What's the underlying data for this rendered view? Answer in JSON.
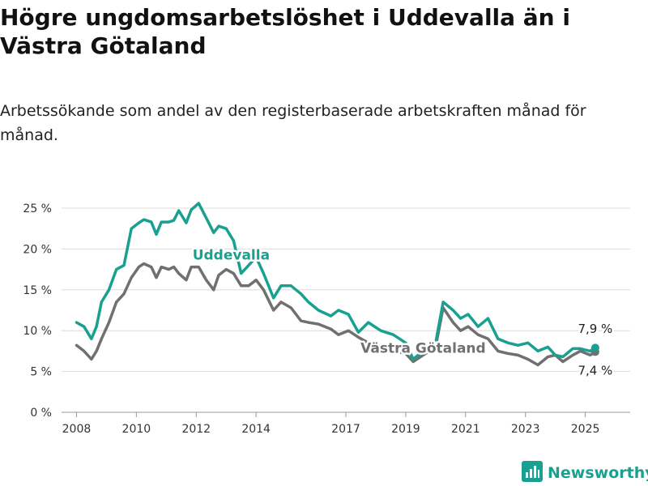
{
  "title": "Högre ungdomsarbetslöshet i Uddevalla än i Västra Götaland",
  "subtitle": "Arbetssökande som andel av den registerbaserade arbetskraften månad för månad.",
  "brand": {
    "name": "Newsworthy",
    "icon": "newsworthy-logo-icon",
    "color": "#1aa090"
  },
  "chart_data": {
    "type": "line",
    "xlim": [
      "2007-07",
      "2026-07"
    ],
    "ylim": [
      0,
      25
    ],
    "y_ticks": [
      "0 %",
      "5 %",
      "10 %",
      "15 %",
      "20 %",
      "25 %"
    ],
    "x_ticks": [
      "2008",
      "2010",
      "2012",
      "2014",
      "2017",
      "2019",
      "2021",
      "2023",
      "2025"
    ],
    "grid": true,
    "series": [
      {
        "name": "Uddevalla",
        "color": "#1aa090",
        "end_label": "7,9 %",
        "points": [
          [
            "2008-01",
            11.0
          ],
          [
            "2008-04",
            10.5
          ],
          [
            "2008-07",
            9.0
          ],
          [
            "2008-09",
            10.5
          ],
          [
            "2008-11",
            13.5
          ],
          [
            "2009-02",
            15.0
          ],
          [
            "2009-05",
            17.5
          ],
          [
            "2009-08",
            18.0
          ],
          [
            "2009-11",
            22.5
          ],
          [
            "2010-02",
            23.2
          ],
          [
            "2010-04",
            23.6
          ],
          [
            "2010-07",
            23.3
          ],
          [
            "2010-09",
            21.8
          ],
          [
            "2010-11",
            23.3
          ],
          [
            "2011-02",
            23.3
          ],
          [
            "2011-04",
            23.5
          ],
          [
            "2011-06",
            24.7
          ],
          [
            "2011-09",
            23.2
          ],
          [
            "2011-11",
            24.8
          ],
          [
            "2012-02",
            25.6
          ],
          [
            "2012-05",
            23.8
          ],
          [
            "2012-08",
            22.0
          ],
          [
            "2012-10",
            22.8
          ],
          [
            "2013-01",
            22.5
          ],
          [
            "2013-04",
            21.0
          ],
          [
            "2013-07",
            17.0
          ],
          [
            "2013-10",
            18.0
          ],
          [
            "2014-01",
            19.0
          ],
          [
            "2014-04",
            17.0
          ],
          [
            "2014-08",
            14.0
          ],
          [
            "2014-11",
            15.5
          ],
          [
            "2015-03",
            15.5
          ],
          [
            "2015-07",
            14.5
          ],
          [
            "2015-10",
            13.5
          ],
          [
            "2016-02",
            12.5
          ],
          [
            "2016-07",
            11.8
          ],
          [
            "2016-10",
            12.5
          ],
          [
            "2017-02",
            12.0
          ],
          [
            "2017-06",
            9.8
          ],
          [
            "2017-10",
            11.0
          ],
          [
            "2018-03",
            10.0
          ],
          [
            "2018-08",
            9.5
          ],
          [
            "2019-01",
            8.5
          ],
          [
            "2019-04",
            6.5
          ],
          [
            "2019-08",
            7.5
          ],
          [
            "2020-01",
            8.5
          ],
          [
            "2020-04",
            13.5
          ],
          [
            "2020-08",
            12.5
          ],
          [
            "2020-11",
            11.5
          ],
          [
            "2021-02",
            12.0
          ],
          [
            "2021-06",
            10.5
          ],
          [
            "2021-10",
            11.5
          ],
          [
            "2022-02",
            9.0
          ],
          [
            "2022-06",
            8.5
          ],
          [
            "2022-10",
            8.2
          ],
          [
            "2023-02",
            8.5
          ],
          [
            "2023-06",
            7.5
          ],
          [
            "2023-10",
            8.0
          ],
          [
            "2024-01",
            7.0
          ],
          [
            "2024-04",
            6.8
          ],
          [
            "2024-08",
            7.8
          ],
          [
            "2024-11",
            7.8
          ],
          [
            "2025-03",
            7.5
          ],
          [
            "2025-05",
            7.9
          ]
        ]
      },
      {
        "name": "Västra Götaland",
        "color": "#707070",
        "end_label": "7,4 %",
        "points": [
          [
            "2008-01",
            8.2
          ],
          [
            "2008-04",
            7.5
          ],
          [
            "2008-07",
            6.5
          ],
          [
            "2008-09",
            7.5
          ],
          [
            "2008-11",
            9.0
          ],
          [
            "2009-02",
            11.0
          ],
          [
            "2009-05",
            13.5
          ],
          [
            "2009-08",
            14.5
          ],
          [
            "2009-11",
            16.5
          ],
          [
            "2010-02",
            17.8
          ],
          [
            "2010-04",
            18.2
          ],
          [
            "2010-07",
            17.8
          ],
          [
            "2010-09",
            16.5
          ],
          [
            "2010-11",
            17.8
          ],
          [
            "2011-02",
            17.5
          ],
          [
            "2011-04",
            17.8
          ],
          [
            "2011-06",
            17.0
          ],
          [
            "2011-09",
            16.2
          ],
          [
            "2011-11",
            17.8
          ],
          [
            "2012-02",
            17.8
          ],
          [
            "2012-05",
            16.2
          ],
          [
            "2012-08",
            15.0
          ],
          [
            "2012-10",
            16.8
          ],
          [
            "2013-01",
            17.5
          ],
          [
            "2013-04",
            17.0
          ],
          [
            "2013-07",
            15.5
          ],
          [
            "2013-10",
            15.5
          ],
          [
            "2014-01",
            16.2
          ],
          [
            "2014-04",
            15.0
          ],
          [
            "2014-08",
            12.5
          ],
          [
            "2014-11",
            13.5
          ],
          [
            "2015-03",
            12.8
          ],
          [
            "2015-07",
            11.2
          ],
          [
            "2015-10",
            11.0
          ],
          [
            "2016-02",
            10.8
          ],
          [
            "2016-07",
            10.2
          ],
          [
            "2016-10",
            9.5
          ],
          [
            "2017-02",
            10.0
          ],
          [
            "2017-06",
            9.2
          ],
          [
            "2017-10",
            8.5
          ],
          [
            "2018-03",
            8.0
          ],
          [
            "2018-08",
            7.5
          ],
          [
            "2019-01",
            7.2
          ],
          [
            "2019-04",
            6.2
          ],
          [
            "2019-08",
            7.0
          ],
          [
            "2020-01",
            8.0
          ],
          [
            "2020-04",
            12.8
          ],
          [
            "2020-08",
            11.0
          ],
          [
            "2020-11",
            10.0
          ],
          [
            "2021-02",
            10.5
          ],
          [
            "2021-06",
            9.5
          ],
          [
            "2021-10",
            9.0
          ],
          [
            "2022-02",
            7.5
          ],
          [
            "2022-06",
            7.2
          ],
          [
            "2022-10",
            7.0
          ],
          [
            "2023-02",
            6.5
          ],
          [
            "2023-06",
            5.8
          ],
          [
            "2023-10",
            6.8
          ],
          [
            "2024-01",
            7.0
          ],
          [
            "2024-04",
            6.2
          ],
          [
            "2024-08",
            7.0
          ],
          [
            "2024-11",
            7.5
          ],
          [
            "2025-03",
            7.0
          ],
          [
            "2025-05",
            7.4
          ]
        ]
      }
    ]
  }
}
